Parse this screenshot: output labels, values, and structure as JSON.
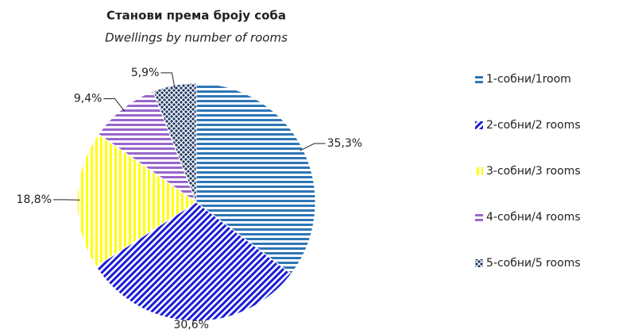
{
  "chart_data": {
    "type": "pie",
    "title": "Станови према броју соба",
    "subtitle": "Dwellings by number of rooms",
    "categories": [
      "1-собни/1room",
      "2-собни/2 rooms",
      "3-собни/3 rooms",
      "4-собни/4 rooms",
      "5-собни/5 rooms"
    ],
    "values": [
      35.3,
      30.6,
      18.8,
      9.4,
      5.9
    ],
    "value_labels": [
      "35,3%",
      "30,6%",
      "18,8%",
      "9,4%",
      "5,9%"
    ],
    "colors": [
      "#2e75b6",
      "#1c1cd6",
      "#ffff00",
      "#9966cc",
      "#1f3864"
    ],
    "legend": "right"
  }
}
